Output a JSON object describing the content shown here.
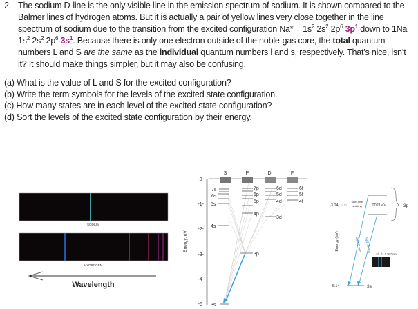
{
  "problem": {
    "number": "2.",
    "sentences": {
      "s1": "The sodium D-line is the only visible line in the emission spectrum of sodium.  It is shown compared to the Balmer lines of hydrogen atoms.  But it is actually a pair of yellow lines very close together in the line spectrum of sodium due to the transition from the excited configuration Na* = 1s",
      "e1": "2",
      "t2": " 2s",
      "e2": "2",
      "t3": " 2p",
      "e3": "6",
      "hl1": "3p",
      "hle1": "1",
      "t4": " down to 1Na = 1s",
      "e4": "2",
      "t5": " 2s",
      "e5": "2",
      "t6": " 2p",
      "e6": "6",
      "hl2": "3s",
      "hle2": "1",
      "t7": ".  Because there is only one electron outside of the noble-gas core, the ",
      "b1": "total",
      "t8": " quantum numbers L and S ",
      "i1": "are the same",
      "t9": " as the ",
      "b2": "individual",
      "t10": " quantum numbers l and s, respectively. That’s nice, isn’t it? It should make things simpler, but it may also be confusing."
    },
    "accent_color": "#a0287a"
  },
  "questions": [
    "(a) What is the value of L and S for the excited configuration?",
    "(b) Write the term symbols for the levels of the excited state configuration.",
    "(c) How many states are in each level of the excited state configuration?",
    "(d) Sort the levels of the excited state configuration by their energy."
  ],
  "spectra": {
    "sodium_label": "SODIUM",
    "hydrogen_label": "HYDROGEN",
    "axis_label": "Wavelength"
  },
  "energy_diagram": {
    "axis_label": "Energy, eV",
    "ticks": [
      "-0-",
      "-1-",
      "-2-",
      "-3-",
      "-4-",
      "-5"
    ],
    "columns": [
      "S",
      "P",
      "D",
      "F"
    ],
    "levels": [
      "7s",
      "6s",
      "5s",
      "4s",
      "3s",
      "7p",
      "6p",
      "5p",
      "4p",
      "3p",
      "6d",
      "5d",
      "4d",
      "3d",
      "6f",
      "5f",
      "4f"
    ]
  },
  "fine_structure": {
    "axis_label": "Energy (eV)",
    "upper_energy": "-3.04",
    "splitting_label_1": "Spin-orbit",
    "splitting_label_2": "splitting",
    "splitting_value": ".0021 eV",
    "upper_level": "3p",
    "lower_energy": "-5.14",
    "lower_level": "3s",
    "line1": "589.0 nm",
    "line2": "589.6 nm",
    "separation": "0.597 nm",
    "line_color": "#3aa0e0"
  }
}
